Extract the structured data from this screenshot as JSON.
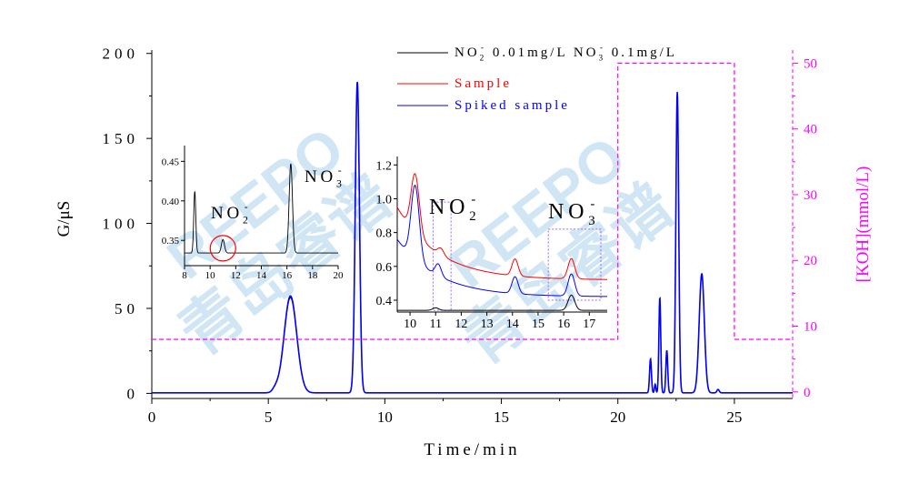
{
  "watermark": {
    "latin": "REEPO",
    "cjk": "青岛睿谱"
  },
  "colors": {
    "standard": "#000000",
    "sample": "#ff0000",
    "spiked": "#0000ff",
    "gradient": "#ff00ff"
  },
  "chart_data": [
    {
      "type": "line",
      "role": "main",
      "xlabel": "Time/min",
      "ylabel": "G/μS",
      "y2label": "[KOH](mmol/L)",
      "xlim": [
        0,
        27.5
      ],
      "ylim": [
        -3,
        202
      ],
      "y2lim": [
        -1,
        52
      ],
      "xticks": [
        0,
        5,
        10,
        15,
        20,
        25
      ],
      "yticks": [
        0,
        50,
        100,
        150,
        200
      ],
      "y2ticks": [
        0,
        10,
        20,
        30,
        40,
        50
      ],
      "legend": {
        "placement": "top-center",
        "entries": [
          {
            "label": "NO2- 0.01mg/L NO3- 0.1mg/L",
            "parts": [
              "NO",
              "2",
              "-",
              " 0.01mg/L  NO",
              "3",
              "-",
              " 0.1mg/L"
            ]
          },
          {
            "label": "Sample"
          },
          {
            "label": "Spiked sample"
          }
        ]
      },
      "series": [
        {
          "name": "NO2- 0.01mg/L NO3- 0.1mg/L",
          "color": "#000000",
          "baseline": 0.3,
          "peaks": [
            [
              5.95,
              56,
              0.27
            ],
            [
              8.82,
              182,
              0.09
            ],
            [
              21.4,
              20,
              0.04
            ],
            [
              21.8,
              56,
              0.04
            ],
            [
              22.1,
              25,
              0.04
            ],
            [
              22.55,
              176,
              0.06
            ],
            [
              23.6,
              70,
              0.11
            ],
            [
              5.3,
              2,
              0.12
            ],
            [
              21.6,
              5,
              0.03
            ],
            [
              24.3,
              2,
              0.05
            ]
          ]
        },
        {
          "name": "Sample",
          "color": "#ff0000",
          "baseline": 0.3,
          "peaks": [
            [
              5.95,
              57,
              0.27
            ],
            [
              8.82,
              183,
              0.09
            ],
            [
              21.4,
              20,
              0.04
            ],
            [
              21.8,
              56,
              0.04
            ],
            [
              22.1,
              25,
              0.04
            ],
            [
              22.55,
              177,
              0.06
            ],
            [
              23.6,
              70,
              0.11
            ],
            [
              5.3,
              2,
              0.12
            ],
            [
              21.6,
              5,
              0.03
            ],
            [
              24.3,
              2,
              0.05
            ]
          ]
        },
        {
          "name": "Spiked sample",
          "color": "#0000ff",
          "baseline": 0.3,
          "peaks": [
            [
              5.95,
              57,
              0.27
            ],
            [
              8.82,
              183,
              0.09
            ],
            [
              21.4,
              20,
              0.04
            ],
            [
              21.8,
              56,
              0.04
            ],
            [
              22.1,
              25,
              0.04
            ],
            [
              22.55,
              177,
              0.06
            ],
            [
              23.6,
              70,
              0.11
            ],
            [
              5.3,
              2,
              0.12
            ],
            [
              21.6,
              5,
              0.03
            ],
            [
              24.3,
              2,
              0.05
            ]
          ]
        },
        {
          "name": "KOH gradient",
          "color": "#ff00ff",
          "axis": "y2",
          "style": "dashed",
          "x": [
            0,
            20,
            20,
            25,
            25,
            27.5
          ],
          "y": [
            8,
            8,
            50,
            50,
            8,
            8
          ]
        }
      ]
    },
    {
      "type": "line",
      "role": "inset-1",
      "xlim": [
        8,
        20
      ],
      "ylim": [
        0.318,
        0.47
      ],
      "xticks": [
        8,
        10,
        12,
        14,
        16,
        18,
        20
      ],
      "yticks": [
        0.35,
        0.4,
        0.45
      ],
      "ytick_labels": [
        "0.35",
        "0.40",
        "0.45"
      ],
      "annotations": [
        {
          "text": "NO2-",
          "parts": [
            "NO",
            "2",
            "-"
          ],
          "x": 11.0
        },
        {
          "text": "NO3-",
          "parts": [
            "NO",
            "3",
            "-"
          ],
          "x": 16.3
        }
      ],
      "highlight": {
        "shape": "circle",
        "x": 11.0,
        "y": 0.34,
        "color": "#ff0000"
      },
      "series": [
        {
          "name": "NO2- 0.01mg/L NO3- 0.1mg/L",
          "color": "#000000",
          "baseline": 0.334,
          "peaks": [
            [
              8.8,
              0.078,
              0.08
            ],
            [
              11.0,
              0.017,
              0.12
            ],
            [
              16.3,
              0.113,
              0.13
            ]
          ]
        }
      ]
    },
    {
      "type": "line",
      "role": "inset-2",
      "xlim": [
        9.5,
        17.7
      ],
      "ylim": [
        0.33,
        1.25
      ],
      "xticks": [
        10,
        11,
        12,
        13,
        14,
        15,
        16,
        17
      ],
      "yticks": [
        0.4,
        0.6,
        0.8,
        1.0,
        1.2
      ],
      "ytick_labels": [
        "0.4",
        "0.6",
        "0.8",
        "1.0",
        "1.2"
      ],
      "annotations": [
        {
          "text": "NO2-",
          "parts": [
            "NO",
            "2",
            "-"
          ],
          "x": 11.2
        },
        {
          "text": "NO3-",
          "parts": [
            "NO",
            "3",
            "-"
          ],
          "x": 16.3
        }
      ],
      "boxes": [
        {
          "x": [
            10.9,
            11.6
          ],
          "y": [
            0.34,
            0.98
          ]
        },
        {
          "x": [
            15.4,
            17.45
          ],
          "y": [
            0.4,
            0.82
          ]
        }
      ],
      "series": [
        {
          "name": "Sample",
          "color": "#ff0000",
          "baseline_start": 0.95,
          "baseline_end": 0.52,
          "decay": 1.6,
          "peaks": [
            [
              10.2,
              0.35,
              0.16
            ],
            [
              11.2,
              0.04,
              0.12
            ],
            [
              14.1,
              0.1,
              0.12
            ],
            [
              16.3,
              0.12,
              0.13
            ]
          ]
        },
        {
          "name": "Spiked sample",
          "color": "#0000ff",
          "baseline_start": 0.76,
          "baseline_end": 0.42,
          "decay": 1.6,
          "peaks": [
            [
              10.2,
              0.44,
              0.16
            ],
            [
              11.1,
              0.07,
              0.12
            ],
            [
              14.1,
              0.1,
              0.12
            ],
            [
              16.3,
              0.13,
              0.13
            ]
          ]
        },
        {
          "name": "NO2- 0.01mg/L NO3- 0.1mg/L",
          "color": "#000000",
          "baseline_start": 0.34,
          "baseline_end": 0.34,
          "decay": 1.6,
          "peaks": [
            [
              11.0,
              0.015,
              0.12
            ],
            [
              16.3,
              0.09,
              0.13
            ]
          ]
        }
      ]
    }
  ]
}
